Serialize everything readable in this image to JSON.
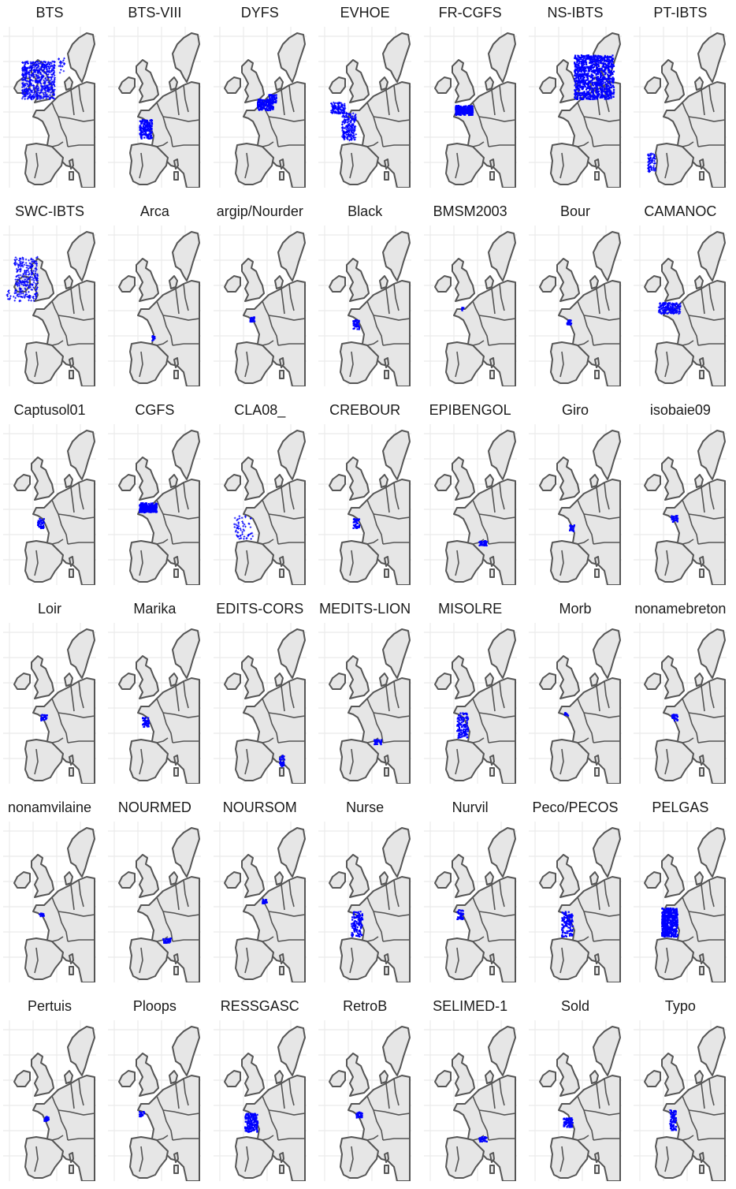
{
  "figure": {
    "panels": [
      {
        "title": "BTS",
        "region": "nw_shelf"
      },
      {
        "title": "BTS-VIII",
        "region": "biscay_s"
      },
      {
        "title": "DYFS",
        "region": "channel_e"
      },
      {
        "title": "EVHOE",
        "region": "biscay_celtic"
      },
      {
        "title": "FR-CGFS",
        "region": "channel"
      },
      {
        "title": "NS-IBTS",
        "region": "north_sea"
      },
      {
        "title": "PT-IBTS",
        "region": "portugal"
      },
      {
        "title": "SWC-IBTS",
        "region": "scotland_w"
      },
      {
        "title": "Arca",
        "region": "arcachon"
      },
      {
        "title": "argip/Nourder",
        "region": "loire_small"
      },
      {
        "title": "Black",
        "region": "vendee"
      },
      {
        "title": "BMSM2003",
        "region": "stmalo"
      },
      {
        "title": "Bour",
        "region": "bourgneuf"
      },
      {
        "title": "CAMANOC",
        "region": "channel_w"
      },
      {
        "title": "Captusol01",
        "region": "vendee"
      },
      {
        "title": "CGFS",
        "region": "channel"
      },
      {
        "title": "CLA08_",
        "region": "biscay_scatter"
      },
      {
        "title": "CREBOUR",
        "region": "vendee"
      },
      {
        "title": "EPIBENGOL",
        "region": "lion"
      },
      {
        "title": "Giro",
        "region": "gironde"
      },
      {
        "title": "isobaie09",
        "region": "loire"
      },
      {
        "title": "Loir",
        "region": "loire"
      },
      {
        "title": "Marika",
        "region": "vendee"
      },
      {
        "title": "EDITS-CORS",
        "region": "corsica"
      },
      {
        "title": "MEDITS-LION",
        "region": "lion"
      },
      {
        "title": "MISOLRE",
        "region": "biscay_coast"
      },
      {
        "title": "Morb",
        "region": "morbihan"
      },
      {
        "title": "nonamebreton",
        "region": "loire"
      },
      {
        "title": "nonamvilaine",
        "region": "vilaine"
      },
      {
        "title": "NOURMED",
        "region": "lion"
      },
      {
        "title": "NOURSOM",
        "region": "somme"
      },
      {
        "title": "Nurse",
        "region": "biscay_coast"
      },
      {
        "title": "Nurvil",
        "region": "vilaine_north"
      },
      {
        "title": "Peco/PECOS",
        "region": "biscay_coast"
      },
      {
        "title": "PELGAS",
        "region": "biscay_full"
      },
      {
        "title": "Pertuis",
        "region": "pertuis"
      },
      {
        "title": "Ploops",
        "region": "brittany_s"
      },
      {
        "title": "RESSGASC",
        "region": "biscay_s"
      },
      {
        "title": "RetroB",
        "region": "loire"
      },
      {
        "title": "SELIMED-1",
        "region": "lion"
      },
      {
        "title": "Sold",
        "region": "gironde_large"
      },
      {
        "title": "Typo",
        "region": "vendee_long"
      }
    ],
    "colors": {
      "point": "#0000ff",
      "land": "#e6e6e6",
      "border": "#555555",
      "grid": "#ebebeb",
      "title": "#1a1a1a"
    }
  }
}
